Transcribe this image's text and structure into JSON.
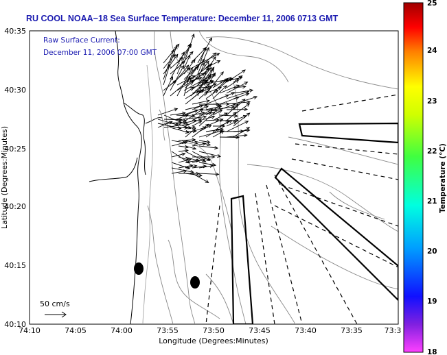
{
  "title": "RU COOL  NOAA−18  Sea Surface Temperature:  December 11, 2006 0713 GMT",
  "annotation": {
    "line1": "Raw Surface Current:",
    "line2": "December 11, 2006 07:00 GMT"
  },
  "scale_label": "50 cm/s",
  "axes": {
    "xlabel": "Longitude (Degrees:Minutes)",
    "ylabel": "Latitude (Degrees:Minutes)",
    "x_ticks": [
      "74:10",
      "74:05",
      "74:00",
      "73:55",
      "73:50",
      "73:45",
      "73:40",
      "73:35",
      "73:3"
    ],
    "y_ticks": [
      "40:35",
      "40:30",
      "40:25",
      "40:20",
      "40:15",
      "40:10"
    ]
  },
  "colorbar": {
    "label": "Temperature (°C)",
    "ticks": [
      "25",
      "24",
      "23",
      "22",
      "21",
      "20",
      "19",
      "18"
    ],
    "range": [
      18,
      25
    ]
  },
  "colors": {
    "title": "#1a1ab0",
    "annotation": "#1a1ab0",
    "background": "#ffffff"
  }
}
